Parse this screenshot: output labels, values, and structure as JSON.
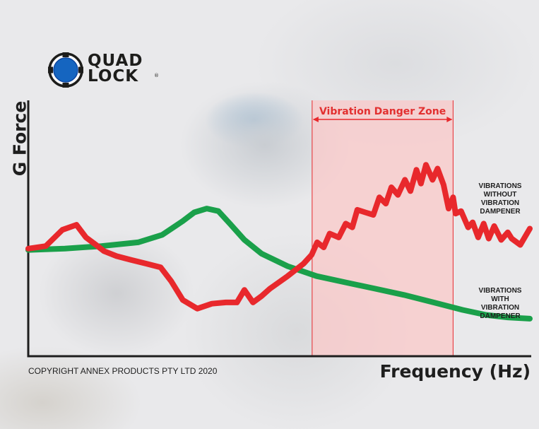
{
  "brand": {
    "logo_text": "QUAD\nLOCK",
    "registered_mark": "®",
    "logo_color": "#1565c0",
    "icon": "quad-lock-logo-icon"
  },
  "copyright": "COPYRIGHT ANNEX PRODUCTS PTY LTD 2020",
  "colors": {
    "without_dampener": "#e8282c",
    "with_dampener": "#1aa04a",
    "danger_zone_fill": "#f9c8c8",
    "danger_zone_border": "#e8282c",
    "danger_zone_text": "#e23030",
    "axis": "#1e1e1e"
  },
  "chart_data": {
    "type": "line",
    "xlabel": "Frequency (Hz)",
    "ylabel": "G Force",
    "xlim": [
      0,
      100
    ],
    "ylim": [
      0,
      100
    ],
    "grid": false,
    "axis_tick_labels": false,
    "annotations": [
      {
        "type": "x-range",
        "text": "Vibration Danger Zone",
        "x_start": 56.6,
        "x_end": 84.7,
        "arrows": "both"
      }
    ],
    "series": [
      {
        "name": "VIBRATIONS\nWITHOUT\nVIBRATION\nDAMPENER",
        "color": "#e8282c",
        "points": [
          [
            0,
            43
          ],
          [
            3.5,
            44
          ],
          [
            6.8,
            50.5
          ],
          [
            9.6,
            52.5
          ],
          [
            11.5,
            47.5
          ],
          [
            13.5,
            44.5
          ],
          [
            15.1,
            42
          ],
          [
            17.6,
            40
          ],
          [
            20.5,
            38.5
          ],
          [
            23.5,
            37
          ],
          [
            26.4,
            35.5
          ],
          [
            28.5,
            30
          ],
          [
            30.8,
            22.5
          ],
          [
            33.7,
            19
          ],
          [
            36.6,
            21
          ],
          [
            39.4,
            21.5
          ],
          [
            41.6,
            21.5
          ],
          [
            43.1,
            26.5
          ],
          [
            44.8,
            21.5
          ],
          [
            46.5,
            24
          ],
          [
            48.2,
            27
          ],
          [
            51.7,
            32
          ],
          [
            54.9,
            37
          ],
          [
            56.5,
            40.5
          ],
          [
            57.6,
            45.5
          ],
          [
            58.9,
            43.5
          ],
          [
            60.1,
            49
          ],
          [
            61.9,
            47.5
          ],
          [
            63.3,
            53
          ],
          [
            64.6,
            51.5
          ],
          [
            65.6,
            58.5
          ],
          [
            67.2,
            57.5
          ],
          [
            68.8,
            56.5
          ],
          [
            70,
            63.5
          ],
          [
            71.3,
            61
          ],
          [
            72.4,
            67.5
          ],
          [
            73.7,
            64.5
          ],
          [
            75.1,
            70.5
          ],
          [
            76.2,
            66
          ],
          [
            77.4,
            74.5
          ],
          [
            78.3,
            69
          ],
          [
            79.3,
            76.5
          ],
          [
            80.6,
            70.5
          ],
          [
            81.6,
            75
          ],
          [
            82.8,
            68.5
          ],
          [
            83.8,
            59
          ],
          [
            84.7,
            63.5
          ],
          [
            85.2,
            57
          ],
          [
            86.3,
            58
          ],
          [
            87.7,
            51.5
          ],
          [
            88.6,
            53.5
          ],
          [
            89.7,
            47.5
          ],
          [
            90.8,
            53
          ],
          [
            91.8,
            47
          ],
          [
            92.9,
            52
          ],
          [
            94.3,
            46.5
          ],
          [
            95.6,
            49.5
          ],
          [
            96.4,
            47
          ],
          [
            98.1,
            44.5
          ],
          [
            100,
            51
          ]
        ]
      },
      {
        "name": "VIBRATIONS\nWITH\nVIBRATION\nDAMPENER",
        "color": "#1aa04a",
        "points": [
          [
            0,
            42.5
          ],
          [
            7.3,
            43
          ],
          [
            14.6,
            44
          ],
          [
            21.9,
            45.5
          ],
          [
            26.7,
            48.5
          ],
          [
            30.8,
            54
          ],
          [
            33.1,
            57.5
          ],
          [
            35.6,
            59
          ],
          [
            37.9,
            58
          ],
          [
            40.2,
            53
          ],
          [
            43.1,
            46.5
          ],
          [
            46.5,
            41
          ],
          [
            51.7,
            36
          ],
          [
            57.5,
            32
          ],
          [
            63.3,
            29.5
          ],
          [
            69.1,
            27
          ],
          [
            74.9,
            24.5
          ],
          [
            80.8,
            21.5
          ],
          [
            86.6,
            18.5
          ],
          [
            91.3,
            16.5
          ],
          [
            95.6,
            15.5
          ],
          [
            100,
            15
          ]
        ]
      }
    ]
  }
}
